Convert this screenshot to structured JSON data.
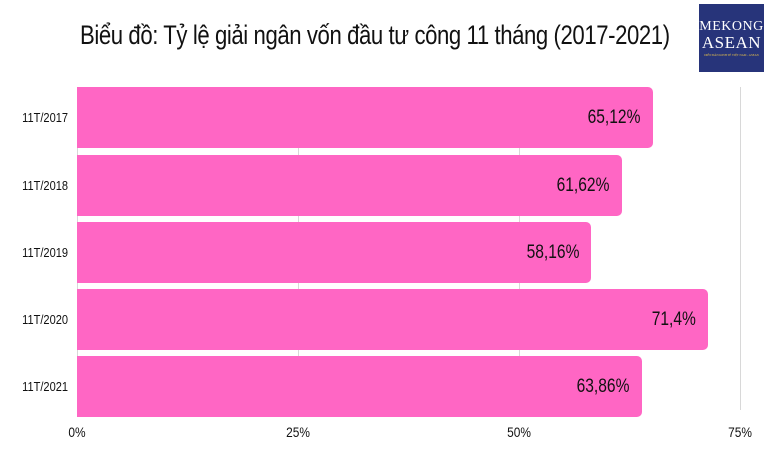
{
  "header": {
    "title": "Biểu đồ: Tỷ lệ giải ngân vốn đầu tư công 11 tháng (2017-2021)"
  },
  "logo": {
    "line1": "MEKONG",
    "line2": "ASEAN",
    "tagline": "DIỄN ĐÀN KINH TẾ VIỆT NAM - ASEAN",
    "bg_color": "#27347a"
  },
  "colors": {
    "bar": "#ff66c4",
    "grid": "#d8d8d8"
  },
  "chart_data": {
    "type": "bar",
    "orientation": "horizontal",
    "title": "Biểu đồ: Tỷ lệ giải ngân vốn đầu tư công 11 tháng (2017-2021)",
    "categories": [
      "11T/2017",
      "11T/2018",
      "11T/2019",
      "11T/2020",
      "11T/2021"
    ],
    "values": [
      65.12,
      61.62,
      58.16,
      71.4,
      63.86
    ],
    "value_labels": [
      "65,12%",
      "61,62%",
      "58,16%",
      "71,4%",
      "63,86%"
    ],
    "xlabel": "",
    "ylabel": "",
    "xlim": [
      0,
      75
    ],
    "x_ticks": [
      "0%",
      "25%",
      "50%",
      "75%"
    ],
    "grid": true,
    "legend": null
  }
}
